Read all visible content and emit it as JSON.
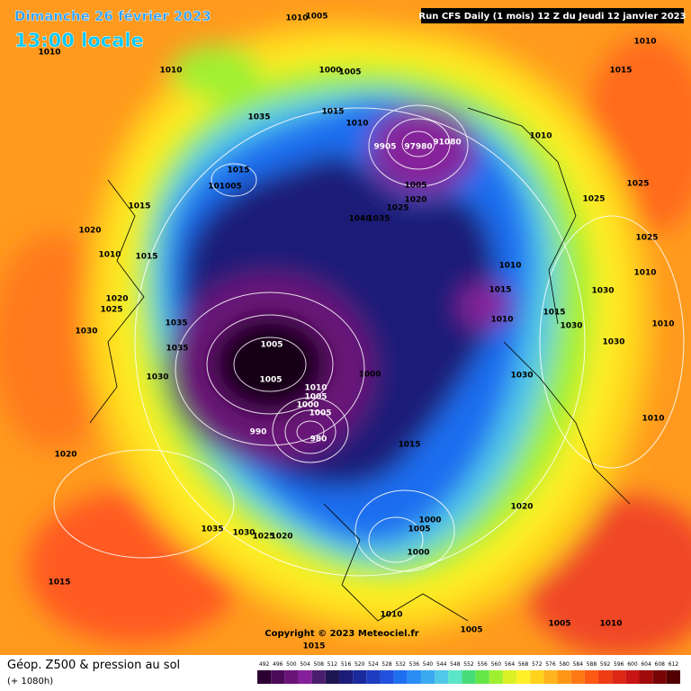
{
  "header": {
    "date": "Dimanche 26 février 2023",
    "time": "13:00 locale",
    "run": "Run CFS Daily (1 mois) 12 Z du Jeudi 12 janvier 2023"
  },
  "isobar_labels": [
    "1010",
    "1005",
    "1010",
    "1010",
    "1000",
    "1005",
    "1010",
    "1015",
    "1035",
    "1015",
    "1010",
    "9905",
    "97980",
    "91080",
    "1010",
    "1015",
    "101005",
    "1015",
    "1005",
    "1020",
    "1025",
    "1040",
    "1035",
    "1025",
    "1025",
    "1020",
    "1010",
    "1015",
    "1010",
    "1025",
    "1010",
    "1015",
    "1030",
    "1020",
    "1025",
    "1035",
    "1010",
    "1015",
    "1030",
    "1010",
    "1030",
    "1035",
    "1005",
    "1030",
    "1030",
    "1005",
    "1000",
    "1030",
    "1010",
    "1005",
    "1000",
    "1005",
    "1010",
    "990",
    "980",
    "1015",
    "1020",
    "1020",
    "1035",
    "1030",
    "1025",
    "1020",
    "1000",
    "1005",
    "1000",
    "1015",
    "1010",
    "1005",
    "1005",
    "1010",
    "1015"
  ],
  "copyright": "Copyright © 2023 Meteociel.fr",
  "legend": {
    "title": "Géop. Z500 & pression au sol",
    "lead": "(+ 1080h)",
    "ticks": [
      492,
      496,
      500,
      504,
      508,
      512,
      516,
      520,
      524,
      528,
      532,
      536,
      540,
      544,
      548,
      552,
      556,
      560,
      564,
      568,
      572,
      576,
      580,
      584,
      588,
      592,
      596,
      600,
      604,
      608,
      612
    ],
    "colors": [
      "#2d0033",
      "#4b0a58",
      "#6a1478",
      "#86209a",
      "#4a1e6e",
      "#1e1650",
      "#1c1c78",
      "#1a2a9c",
      "#1e3cc0",
      "#2050dc",
      "#1e6ef0",
      "#2a8cf5",
      "#3caaf0",
      "#50c8e8",
      "#5ae6c8",
      "#46dc78",
      "#64e646",
      "#a0f032",
      "#dcf028",
      "#fff028",
      "#ffd21e",
      "#ffb41e",
      "#ff9614",
      "#ff7814",
      "#ff5a14",
      "#f03c14",
      "#dc2814",
      "#c81414",
      "#a00a0a",
      "#780505",
      "#500000"
    ]
  }
}
